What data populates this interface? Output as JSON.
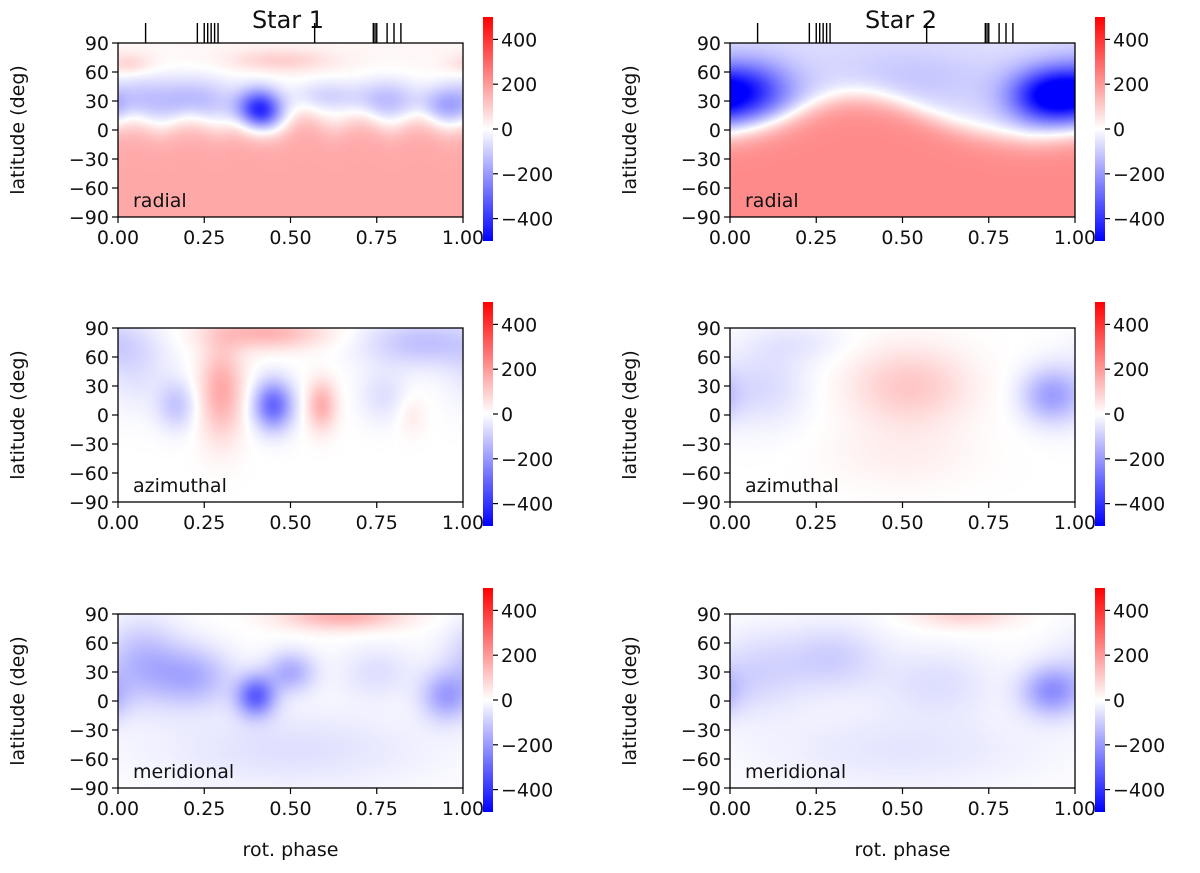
{
  "figure": {
    "xlabel": "rot. phase",
    "ylabel": "latitude (deg)",
    "column_titles": [
      "Star 1",
      "Star 2"
    ],
    "colormap": "bwr",
    "colors": {
      "negative": "#0000ff",
      "zero": "#ffffff",
      "positive": "#ff0000"
    }
  },
  "chart_data": [
    {
      "type": "heatmap",
      "star": "Star 1",
      "component": "radial",
      "panel_label": "radial",
      "xlabel": "",
      "ylabel": "latitude (deg)",
      "xlim": [
        0,
        1
      ],
      "ylim": [
        -90,
        90
      ],
      "x_ticks": [
        "0.00",
        "0.25",
        "0.50",
        "0.75",
        "1.00"
      ],
      "y_ticks": [
        "90",
        "60",
        "30",
        "0",
        "−30",
        "−60",
        "−90"
      ],
      "colorbar": {
        "range": [
          -500,
          500
        ],
        "ticks": [
          "400",
          "200",
          "0",
          "−200",
          "−400"
        ]
      },
      "observation_phases": [
        0.08,
        0.23,
        0.25,
        0.26,
        0.27,
        0.28,
        0.29,
        0.57,
        0.74,
        0.745,
        0.75,
        0.78,
        0.8,
        0.82
      ],
      "field_model": {
        "base": {
          "below_boundary": 170,
          "above_boundary": 20,
          "boundary_latitude": 8,
          "boundary_waviness": 6,
          "transition_width": 8
        },
        "features": [
          {
            "phase": 0.41,
            "latitude": 20,
            "value": -460,
            "phase_width": 0.045,
            "lat_width": 15
          },
          {
            "phase": 0.22,
            "latitude": 30,
            "value": -160,
            "phase_width": 0.09,
            "lat_width": 18
          },
          {
            "phase": 0.05,
            "latitude": 30,
            "value": -110,
            "phase_width": 0.07,
            "lat_width": 20
          },
          {
            "phase": 0.78,
            "latitude": 30,
            "value": -150,
            "phase_width": 0.07,
            "lat_width": 16
          },
          {
            "phase": 0.95,
            "latitude": 25,
            "value": -160,
            "phase_width": 0.05,
            "lat_width": 14
          },
          {
            "phase": 0.6,
            "latitude": 35,
            "value": -100,
            "phase_width": 0.07,
            "lat_width": 12
          },
          {
            "phase": 0.03,
            "latitude": 68,
            "value": 80,
            "phase_width": 0.05,
            "lat_width": 8
          },
          {
            "phase": 0.47,
            "latitude": 72,
            "value": 80,
            "phase_width": 0.1,
            "lat_width": 8
          }
        ]
      }
    },
    {
      "type": "heatmap",
      "star": "Star 2",
      "component": "radial",
      "panel_label": "radial",
      "xlabel": "",
      "ylabel": "latitude (deg)",
      "xlim": [
        0,
        1
      ],
      "ylim": [
        -90,
        90
      ],
      "x_ticks": [
        "0.00",
        "0.25",
        "0.50",
        "0.75",
        "1.00"
      ],
      "y_ticks": [
        "90",
        "60",
        "30",
        "0",
        "−30",
        "−60",
        "−90"
      ],
      "colorbar": {
        "range": [
          -500,
          500
        ],
        "ticks": [
          "400",
          "200",
          "0",
          "−200",
          "−400"
        ]
      },
      "observation_phases": [
        0.08,
        0.23,
        0.25,
        0.26,
        0.27,
        0.28,
        0.29,
        0.57,
        0.74,
        0.745,
        0.75,
        0.78,
        0.8,
        0.82
      ],
      "field_model": {
        "base": {
          "below_boundary": 230,
          "above_boundary": -80,
          "boundary_latitude": 0,
          "boundary_waviness": 0,
          "transition_width": 8,
          "boundary_peak": {
            "phase": 0.37,
            "latitude": 35,
            "width": 0.17
          }
        },
        "features": [
          {
            "phase": 0.05,
            "latitude": 40,
            "value": -330,
            "phase_width": 0.09,
            "lat_width": 22
          },
          {
            "phase": 0.92,
            "latitude": 35,
            "value": -400,
            "phase_width": 0.08,
            "lat_width": 20
          },
          {
            "phase": 0.55,
            "latitude": 55,
            "value": -40,
            "phase_width": 0.15,
            "lat_width": 20
          }
        ]
      }
    },
    {
      "type": "heatmap",
      "star": "Star 1",
      "component": "azimuthal",
      "panel_label": "azimuthal",
      "xlabel": "",
      "ylabel": "latitude (deg)",
      "xlim": [
        0,
        1
      ],
      "ylim": [
        -90,
        90
      ],
      "x_ticks": [
        "0.00",
        "0.25",
        "0.50",
        "0.75",
        "1.00"
      ],
      "y_ticks": [
        "90",
        "60",
        "30",
        "0",
        "−30",
        "−60",
        "−90"
      ],
      "colorbar": {
        "range": [
          -500,
          500
        ],
        "ticks": [
          "400",
          "200",
          "0",
          "−200",
          "−400"
        ]
      },
      "field_model": {
        "base": {
          "below_boundary": 0,
          "above_boundary": 0,
          "boundary_latitude": 0,
          "boundary_waviness": 0,
          "transition_width": 10
        },
        "features": [
          {
            "phase": 0.43,
            "latitude": 85,
            "value": 150,
            "phase_width": 0.12,
            "lat_width": 12
          },
          {
            "phase": 0.3,
            "latitude": 25,
            "value": 170,
            "phase_width": 0.045,
            "lat_width": 35
          },
          {
            "phase": 0.45,
            "latitude": 10,
            "value": -300,
            "phase_width": 0.04,
            "lat_width": 18
          },
          {
            "phase": 0.59,
            "latitude": 10,
            "value": 160,
            "phase_width": 0.03,
            "lat_width": 18
          },
          {
            "phase": 0.17,
            "latitude": 10,
            "value": -110,
            "phase_width": 0.04,
            "lat_width": 18
          },
          {
            "phase": 0.05,
            "latitude": 50,
            "value": -60,
            "phase_width": 0.07,
            "lat_width": 30
          },
          {
            "phase": 0.88,
            "latitude": 75,
            "value": -120,
            "phase_width": 0.12,
            "lat_width": 18
          },
          {
            "phase": 0.77,
            "latitude": 20,
            "value": -60,
            "phase_width": 0.05,
            "lat_width": 20
          },
          {
            "phase": 0.85,
            "latitude": 0,
            "value": 40,
            "phase_width": 0.03,
            "lat_width": 15
          }
        ]
      }
    },
    {
      "type": "heatmap",
      "star": "Star 2",
      "component": "azimuthal",
      "panel_label": "azimuthal",
      "xlabel": "",
      "ylabel": "latitude (deg)",
      "xlim": [
        0,
        1
      ],
      "ylim": [
        -90,
        90
      ],
      "x_ticks": [
        "0.00",
        "0.25",
        "0.50",
        "0.75",
        "1.00"
      ],
      "y_ticks": [
        "90",
        "60",
        "30",
        "0",
        "−30",
        "−60",
        "−90"
      ],
      "colorbar": {
        "range": [
          -500,
          500
        ],
        "ticks": [
          "400",
          "200",
          "0",
          "−200",
          "−400"
        ]
      },
      "field_model": {
        "base": {
          "below_boundary": 0,
          "above_boundary": 0,
          "boundary_latitude": 0,
          "boundary_waviness": 0,
          "transition_width": 10
        },
        "features": [
          {
            "phase": 0.52,
            "latitude": 30,
            "value": 110,
            "phase_width": 0.12,
            "lat_width": 28
          },
          {
            "phase": 0.1,
            "latitude": 30,
            "value": -70,
            "phase_width": 0.09,
            "lat_width": 30
          },
          {
            "phase": 0.93,
            "latitude": 20,
            "value": -180,
            "phase_width": 0.06,
            "lat_width": 20
          },
          {
            "phase": 0.2,
            "latitude": 75,
            "value": -40,
            "phase_width": 0.1,
            "lat_width": 15
          },
          {
            "phase": 0.5,
            "latitude": -40,
            "value": 30,
            "phase_width": 0.15,
            "lat_width": 25
          }
        ]
      }
    },
    {
      "type": "heatmap",
      "star": "Star 1",
      "component": "meridional",
      "panel_label": "meridional",
      "xlabel": "rot. phase",
      "ylabel": "latitude (deg)",
      "xlim": [
        0,
        1
      ],
      "ylim": [
        -90,
        90
      ],
      "x_ticks": [
        "0.00",
        "0.25",
        "0.50",
        "0.75",
        "1.00"
      ],
      "y_ticks": [
        "90",
        "60",
        "30",
        "0",
        "−30",
        "−60",
        "−90"
      ],
      "colorbar": {
        "range": [
          -500,
          500
        ],
        "ticks": [
          "400",
          "200",
          "0",
          "−200",
          "−400"
        ]
      },
      "field_model": {
        "base": {
          "below_boundary": 0,
          "above_boundary": 0,
          "boundary_latitude": 0,
          "boundary_waviness": 0,
          "transition_width": 10
        },
        "features": [
          {
            "phase": 0.65,
            "latitude": 88,
            "value": 160,
            "phase_width": 0.12,
            "lat_width": 10
          },
          {
            "phase": 0.4,
            "latitude": 5,
            "value": -300,
            "phase_width": 0.04,
            "lat_width": 15
          },
          {
            "phase": 0.5,
            "latitude": 30,
            "value": -160,
            "phase_width": 0.05,
            "lat_width": 15
          },
          {
            "phase": 0.22,
            "latitude": 25,
            "value": -150,
            "phase_width": 0.08,
            "lat_width": 22
          },
          {
            "phase": 0.07,
            "latitude": 40,
            "value": -140,
            "phase_width": 0.08,
            "lat_width": 30
          },
          {
            "phase": 0.95,
            "latitude": 5,
            "value": -170,
            "phase_width": 0.05,
            "lat_width": 18
          },
          {
            "phase": 0.75,
            "latitude": 30,
            "value": -60,
            "phase_width": 0.08,
            "lat_width": 20
          },
          {
            "phase": 0.5,
            "latitude": -50,
            "value": -60,
            "phase_width": 0.3,
            "lat_width": 30
          }
        ]
      }
    },
    {
      "type": "heatmap",
      "star": "Star 2",
      "component": "meridional",
      "panel_label": "meridional",
      "xlabel": "rot. phase",
      "ylabel": "latitude (deg)",
      "xlim": [
        0,
        1
      ],
      "ylim": [
        -90,
        90
      ],
      "x_ticks": [
        "0.00",
        "0.25",
        "0.50",
        "0.75",
        "1.00"
      ],
      "y_ticks": [
        "90",
        "60",
        "30",
        "0",
        "−30",
        "−60",
        "−90"
      ],
      "colorbar": {
        "range": [
          -500,
          500
        ],
        "ticks": [
          "400",
          "200",
          "0",
          "−200",
          "−400"
        ]
      },
      "field_model": {
        "base": {
          "below_boundary": 0,
          "above_boundary": 0,
          "boundary_latitude": 0,
          "boundary_waviness": 0,
          "transition_width": 10
        },
        "features": [
          {
            "phase": 0.68,
            "latitude": 90,
            "value": 90,
            "phase_width": 0.1,
            "lat_width": 10
          },
          {
            "phase": 0.93,
            "latitude": 10,
            "value": -200,
            "phase_width": 0.06,
            "lat_width": 18
          },
          {
            "phase": 0.3,
            "latitude": 45,
            "value": -90,
            "phase_width": 0.1,
            "lat_width": 25
          },
          {
            "phase": 0.08,
            "latitude": 30,
            "value": -80,
            "phase_width": 0.1,
            "lat_width": 30
          },
          {
            "phase": 0.6,
            "latitude": 20,
            "value": -60,
            "phase_width": 0.12,
            "lat_width": 25
          },
          {
            "phase": 0.5,
            "latitude": -50,
            "value": -50,
            "phase_width": 0.3,
            "lat_width": 30
          }
        ]
      }
    }
  ]
}
